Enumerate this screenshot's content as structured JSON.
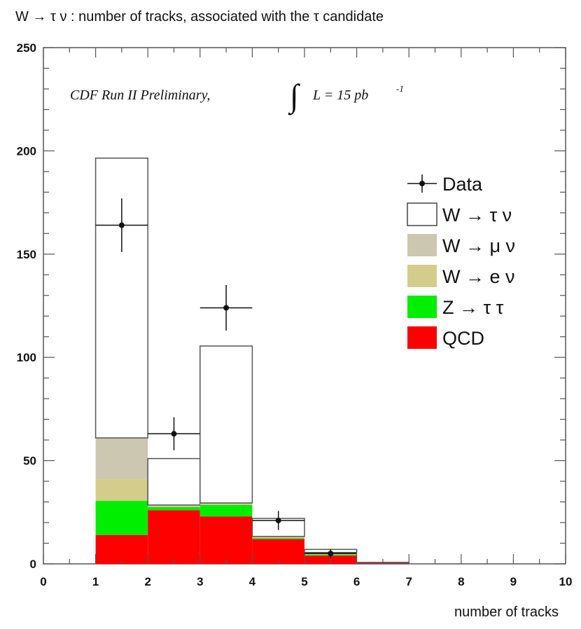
{
  "chart_data": {
    "type": "bar",
    "title": "W → τ ν : number of tracks, associated with the   τ  candidate",
    "xlabel": "number of tracks",
    "ylabel": "",
    "xlim": [
      0,
      10
    ],
    "ylim": [
      0,
      250
    ],
    "x_ticks": [
      "0",
      "1",
      "2",
      "3",
      "4",
      "5",
      "6",
      "7",
      "8",
      "9",
      "10"
    ],
    "y_ticks": [
      "0",
      "50",
      "100",
      "150",
      "200",
      "250"
    ],
    "annotation": {
      "prefix": "CDF Run II Preliminary,",
      "integral": "∫",
      "lumi": "L = 15 pb",
      "lumi_sup": "-1"
    },
    "bins": [
      [
        1,
        2
      ],
      [
        2,
        3
      ],
      [
        3,
        4
      ],
      [
        4,
        5
      ],
      [
        5,
        6
      ],
      [
        6,
        7
      ]
    ],
    "stack": [
      {
        "name": "QCD",
        "color": "#ff0000",
        "values": [
          14,
          26,
          23,
          12,
          4,
          0.5
        ]
      },
      {
        "name": "Z → τ τ",
        "color": "#00ee00",
        "values": [
          16.5,
          1.5,
          5.5,
          0.5,
          0.5,
          0
        ]
      },
      {
        "name": "W → e ν",
        "color": "#d4cc8a",
        "values": [
          10.5,
          0.5,
          0.5,
          0.3,
          0.3,
          0
        ]
      },
      {
        "name": "W → μ ν",
        "color": "#ccc7b0",
        "values": [
          20,
          0.5,
          0.5,
          0.5,
          0.7,
          0
        ]
      },
      {
        "name": "W → τ ν",
        "color": "#ffffff",
        "values": [
          135.5,
          22.5,
          76,
          8.7,
          1.5,
          0.2
        ]
      }
    ],
    "data_points": {
      "name": "Data",
      "x": [
        1.5,
        2.5,
        3.5,
        4.5,
        5.5
      ],
      "y": [
        164,
        63,
        124,
        21,
        5
      ],
      "yerr": [
        13,
        8,
        11,
        4.6,
        2.2
      ]
    },
    "legend": {
      "position": "top-right",
      "entries": [
        "Data",
        "W → τ ν",
        "W → μ ν",
        "W → e ν",
        "Z → τ τ",
        "QCD"
      ],
      "colors": [
        "#000000",
        "#ffffff",
        "#ccc7b0",
        "#d4cc8a",
        "#00ee00",
        "#ff0000"
      ]
    },
    "grid": false
  }
}
